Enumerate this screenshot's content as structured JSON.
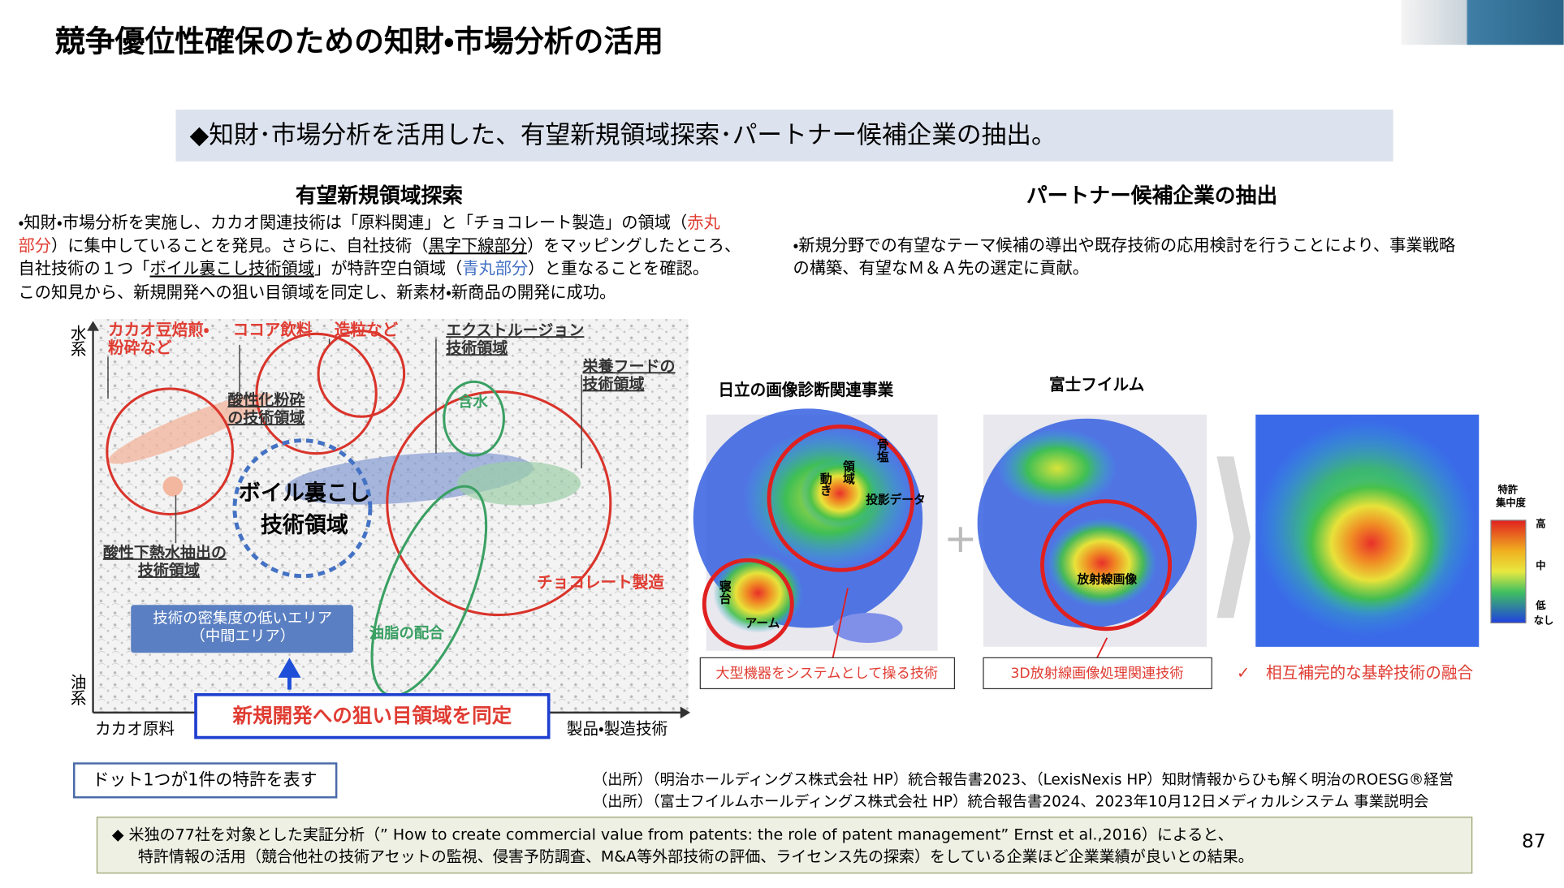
{
  "header": {
    "title": "競争優位性確保のための知財・市場分析の活用",
    "subtitle": "◆知財･市場分析を活用した、有望新規領域探索･パートナー候補企業の抽出。"
  },
  "left": {
    "heading": "有望新規領域探索",
    "body": [
      [
        "・知財・市場分析を実施し、カカオ関連技術は「原料関連」と「チョコレート製造」の領域（",
        "赤丸"
      ],
      [
        "部分",
        "）に集中していることを発見。さらに、自社技術（",
        "黒字下線部分",
        "）をマッピングしたところ、"
      ],
      [
        "自社技術の１つ「",
        "ボイル裏こし技術領域",
        "」が特許空白領域（",
        "青丸部分",
        "）と重なることを確認。"
      ],
      [
        "この知見から、新規開発への狙い目領域を同定し、新素材・新商品の開発に成功。"
      ]
    ],
    "map": {
      "y_top": "水系",
      "y_bottom": "油系",
      "x_left": "カカオ原料",
      "x_right": "製品・製造技術",
      "cacao_roast": [
        "カカオ豆焙煎・",
        "粉砕など"
      ],
      "cocoa_drink": "ココア飲料",
      "granulation": "造粒など",
      "extrusion": [
        "エクストルージョン",
        "技術領域"
      ],
      "nutrition": [
        "栄養フードの",
        "技術領域"
      ],
      "acid_grind": [
        "酸性化粉砕",
        "の技術領域"
      ],
      "water": "含水",
      "boil": [
        "ボイル裏こし",
        "技術領域"
      ],
      "acid_extract": [
        "酸性下熱水抽出の",
        "技術領域"
      ],
      "chocolate": "チョコレート製造",
      "fat": "油脂の配合",
      "low_density": [
        "技術の密集度の低いエリア",
        "（中間エリア）"
      ]
    },
    "callout": "新規開発への狙い目領域を同定",
    "note": "ドット1つが1件の特許を表す"
  },
  "right": {
    "heading": "パートナー候補企業の抽出",
    "body": [
      "・新規分野での有望なテーマ候補の導出や既存技術の応用検討を行うことにより、事業戦略",
      "の構築、有望なＭ＆Ａ先の選定に貢献。"
    ],
    "hitachi": {
      "title": "日立の画像診断関連事業",
      "labels": [
        "骨塩",
        "領域",
        "動き",
        "投影データ",
        "寝台",
        "アーム"
      ],
      "caption": "大型機器をシステムとして操る技術"
    },
    "fujifilm": {
      "title": "富士フイルム",
      "labels": [
        "放射線画像"
      ],
      "caption": "3D放射線画像処理関連技術"
    },
    "plus": "+",
    "legend": {
      "title": [
        "特許",
        "集中度"
      ],
      "levels": [
        "高",
        "中",
        "低",
        "なし"
      ]
    },
    "conclusion": "✓　相互補完的な基幹技術の融合"
  },
  "sources": [
    "（出所）（明治ホールディングス株式会社 HP）統合報告書2023、（LexisNexis HP）知財情報からひも解く明治のROESG®経営",
    "（出所）（富士フイルムホールディングス株式会社 HP）統合報告書2024、2023年10月12日メディカルシステム 事業説明会"
  ],
  "footer": {
    "lines": [
      "◆ 米独の77社を対象とした実証分析（” How to create commercial value from patents: the role of patent management” Ernst et al.,2016）によると、",
      "特許情報の活用（競合他社の技術アセットの監視、侵害予防調査、M&A等外部技術の評価、ライセンス先の探索）をしている企業ほど企業業績が良いとの結果。"
    ],
    "page": "87"
  }
}
